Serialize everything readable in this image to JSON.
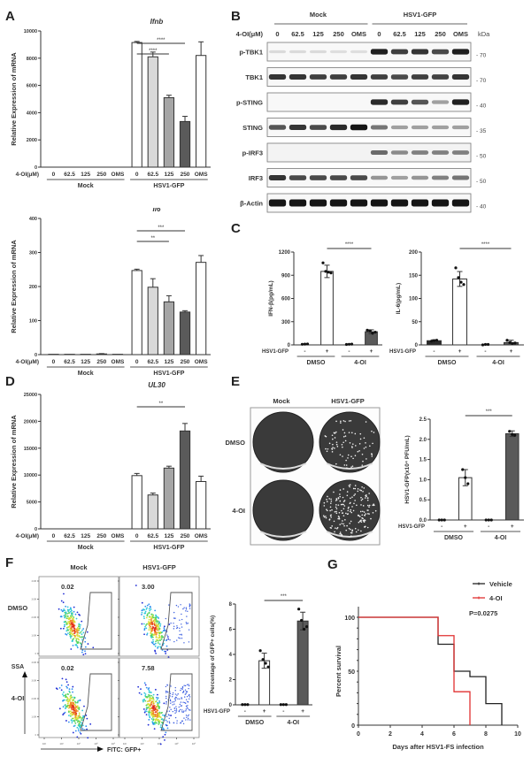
{
  "panel_labels": [
    "A",
    "B",
    "C",
    "D",
    "E",
    "F",
    "G"
  ],
  "chart_data": [
    {
      "id": "A_top",
      "type": "bar",
      "title": "Ifnb",
      "xlabel": "",
      "ylabel": "Relative Expression of mRNA",
      "ylim": [
        0,
        10000
      ],
      "yticks": [
        0,
        2000,
        4000,
        6000,
        8000,
        10000
      ],
      "row_label": "4-OI(μM)",
      "categories": [
        "0",
        "62.5",
        "125",
        "250",
        "OMS",
        "0",
        "62.5",
        "125",
        "250",
        "OMS"
      ],
      "groups": [
        {
          "label": "Mock",
          "from": 0,
          "to": 4
        },
        {
          "label": "HSV1-GFP",
          "from": 5,
          "to": 9
        }
      ],
      "values": [
        0,
        0,
        0,
        0,
        0,
        9150,
        8100,
        5100,
        3350,
        8200
      ],
      "errors": [
        0,
        0,
        0,
        0,
        0,
        80,
        350,
        180,
        380,
        1000
      ],
      "fills": [
        "#ffffff",
        "#d9d9d9",
        "#a6a6a6",
        "#5a5a5a",
        "#ffffff",
        "#ffffff",
        "#d9d9d9",
        "#a6a6a6",
        "#5a5a5a",
        "#ffffff"
      ],
      "significance": [
        {
          "from": 5,
          "to": 8,
          "label": "****"
        },
        {
          "from": 5,
          "to": 7,
          "label": "****"
        }
      ]
    },
    {
      "id": "A_bottom",
      "type": "bar",
      "title": "Il6",
      "xlabel": "",
      "ylabel": "Relative Expression of mRNA",
      "ylim": [
        0,
        400
      ],
      "yticks": [
        0,
        100,
        200,
        300,
        400
      ],
      "row_label": "4-OI(μM)",
      "categories": [
        "0",
        "62.5",
        "125",
        "250",
        "OMS",
        "0",
        "62.5",
        "125",
        "250",
        "OMS"
      ],
      "groups": [
        {
          "label": "Mock",
          "from": 0,
          "to": 4
        },
        {
          "label": "HSV1-GFP",
          "from": 5,
          "to": 9
        }
      ],
      "values": [
        1,
        1,
        1,
        2,
        1,
        247,
        198,
        155,
        125,
        271
      ],
      "errors": [
        0,
        0,
        0,
        1,
        0,
        4,
        25,
        18,
        4,
        20
      ],
      "fills": [
        "#ffffff",
        "#d9d9d9",
        "#a6a6a6",
        "#5a5a5a",
        "#ffffff",
        "#ffffff",
        "#d9d9d9",
        "#a6a6a6",
        "#5a5a5a",
        "#ffffff"
      ],
      "significance": [
        {
          "from": 5,
          "to": 8,
          "label": "***"
        },
        {
          "from": 5,
          "to": 7,
          "label": "**"
        }
      ]
    },
    {
      "id": "D",
      "type": "bar",
      "title": "UL30",
      "xlabel": "",
      "ylabel": "Relative Expression of mRNA",
      "ylim": [
        0,
        25000
      ],
      "yticks": [
        0,
        5000,
        10000,
        15000,
        20000,
        25000
      ],
      "row_label": "4-OI(μM)",
      "categories": [
        "0",
        "62.5",
        "125",
        "250",
        "OMS",
        "0",
        "62.5",
        "125",
        "250",
        "OMS"
      ],
      "groups": [
        {
          "label": "Mock",
          "from": 0,
          "to": 4
        },
        {
          "label": "HSV1-GFP",
          "from": 5,
          "to": 9
        }
      ],
      "values": [
        0,
        0,
        0,
        0,
        0,
        9900,
        6300,
        11300,
        18200,
        8800
      ],
      "errors": [
        0,
        0,
        0,
        0,
        0,
        400,
        350,
        350,
        1400,
        1000
      ],
      "fills": [
        "#ffffff",
        "#d9d9d9",
        "#a6a6a6",
        "#5a5a5a",
        "#ffffff",
        "#ffffff",
        "#d9d9d9",
        "#a6a6a6",
        "#5a5a5a",
        "#ffffff"
      ],
      "significance": [
        {
          "from": 5,
          "to": 8,
          "label": "**"
        }
      ]
    },
    {
      "id": "C_left",
      "type": "bar",
      "title": "",
      "ylabel": "IFN-β(pg/mL)",
      "ylim": [
        0,
        1200
      ],
      "yticks": [
        0,
        300,
        600,
        900,
        1200
      ],
      "row_label": "HSV1-GFP",
      "categories": [
        "-",
        "+",
        "-",
        "+"
      ],
      "groups": [
        {
          "label": "DMSO",
          "from": 0,
          "to": 1
        },
        {
          "label": "4-OI",
          "from": 2,
          "to": 3
        }
      ],
      "values": [
        10,
        950,
        8,
        170
      ],
      "errors": [
        3,
        80,
        3,
        25
      ],
      "points": [
        [
          8,
          10,
          12
        ],
        [
          1060,
          950,
          940,
          930
        ],
        [
          6,
          8,
          10
        ],
        [
          190,
          180,
          150,
          165
        ]
      ],
      "fills": [
        "#ffffff",
        "#ffffff",
        "#ffffff",
        "#5a5a5a"
      ],
      "significance": [
        {
          "from": 1,
          "to": 3,
          "label": "****"
        }
      ]
    },
    {
      "id": "C_right",
      "type": "bar",
      "title": "",
      "ylabel": "IL-6(pg/mL)",
      "ylim": [
        0,
        200
      ],
      "yticks": [
        0,
        50,
        100,
        150,
        200
      ],
      "row_label": "HSV1-GFP",
      "categories": [
        "-",
        "+",
        "-",
        "+"
      ],
      "groups": [
        {
          "label": "DMSO",
          "from": 0,
          "to": 1
        },
        {
          "label": "4-OI",
          "from": 2,
          "to": 3
        }
      ],
      "values": [
        9,
        142,
        1,
        5
      ],
      "errors": [
        2,
        16,
        1,
        5
      ],
      "points": [
        [
          8,
          9,
          10
        ],
        [
          166,
          145,
          135,
          130
        ],
        [
          0,
          1,
          1
        ],
        [
          10,
          5,
          3,
          4
        ]
      ],
      "fills": [
        "#2b2b2b",
        "#ffffff",
        "#ffffff",
        "#5a5a5a"
      ],
      "significance": [
        {
          "from": 1,
          "to": 3,
          "label": "****"
        }
      ]
    },
    {
      "id": "E_bar",
      "type": "bar",
      "title": "",
      "ylabel": "HSV1-GFP(x10⁴ PFU/mL)",
      "ylim": [
        0,
        2.5
      ],
      "yticks": [
        0.0,
        0.5,
        1.0,
        1.5,
        2.0,
        2.5
      ],
      "row_label": "HSV1-GFP",
      "categories": [
        "-",
        "+",
        "-",
        "+"
      ],
      "groups": [
        {
          "label": "DMSO",
          "from": 0,
          "to": 1
        },
        {
          "label": "4-OI",
          "from": 2,
          "to": 3
        }
      ],
      "values": [
        0,
        1.05,
        0,
        2.14
      ],
      "errors": [
        0,
        0.2,
        0,
        0.07
      ],
      "points": [
        [
          0,
          0,
          0
        ],
        [
          1.25,
          1.05,
          0.9
        ],
        [
          0,
          0,
          0
        ],
        [
          2.2,
          2.12,
          2.1
        ]
      ],
      "fills": [
        "#ffffff",
        "#ffffff",
        "#ffffff",
        "#5a5a5a"
      ],
      "significance": [
        {
          "from": 1,
          "to": 3,
          "label": "***"
        }
      ]
    },
    {
      "id": "F_bar",
      "type": "bar",
      "title": "",
      "ylabel": "Percentage of GFP+ cells(%)",
      "ylim": [
        0,
        8
      ],
      "yticks": [
        0,
        2,
        4,
        6,
        8
      ],
      "row_label": "HSV1-GFP",
      "categories": [
        "-",
        "+",
        "-",
        "+"
      ],
      "groups": [
        {
          "label": "DMSO",
          "from": 0,
          "to": 1
        },
        {
          "label": "4-OI",
          "from": 2,
          "to": 3
        }
      ],
      "values": [
        0.02,
        3.5,
        0.02,
        6.65
      ],
      "errors": [
        0,
        0.6,
        0,
        0.7
      ],
      "points": [
        [
          0.02,
          0.02,
          0.02
        ],
        [
          4.3,
          3.6,
          3.3,
          3.0
        ],
        [
          0.02,
          0.02,
          0.02
        ],
        [
          7.6,
          6.7,
          6.0,
          6.2
        ]
      ],
      "fills": [
        "#ffffff",
        "#ffffff",
        "#ffffff",
        "#5a5a5a"
      ],
      "significance": [
        {
          "from": 1,
          "to": 3,
          "label": "***"
        }
      ]
    },
    {
      "id": "G",
      "type": "line",
      "title": "",
      "xlabel": "Days after HSV1-FS infection",
      "ylabel": "Percent survival",
      "xlim": [
        0,
        10
      ],
      "ylim": [
        0,
        100
      ],
      "xticks": [
        0,
        2,
        4,
        6,
        8,
        10
      ],
      "yticks": [
        0,
        50,
        100
      ],
      "annotation": "P=0.0275",
      "legend_position": "top-right",
      "series": [
        {
          "name": "Vehicle",
          "color": "#222222",
          "step_x": [
            0,
            5,
            5,
            6,
            6,
            7,
            7,
            8,
            8,
            9,
            9
          ],
          "step_y": [
            100,
            100,
            75,
            75,
            50,
            50,
            45,
            45,
            20,
            20,
            0
          ]
        },
        {
          "name": "4-OI",
          "color": "#e03030",
          "step_x": [
            0,
            5,
            5,
            6,
            6,
            7,
            7
          ],
          "step_y": [
            100,
            100,
            83,
            83,
            31,
            31,
            0
          ]
        }
      ]
    }
  ],
  "western": {
    "groups": [
      "Mock",
      "HSV1-GFP"
    ],
    "row_label": "4-OI(μM)",
    "lanes": [
      "0",
      "62.5",
      "125",
      "250",
      "OMS",
      "0",
      "62.5",
      "125",
      "250",
      "OMS"
    ],
    "kda_label": "kDa",
    "blots": [
      {
        "name": "p-TBK1",
        "marker": "70",
        "intensity": [
          0.08,
          0.08,
          0.08,
          0.06,
          0.06,
          0.95,
          0.8,
          0.85,
          0.75,
          0.95
        ]
      },
      {
        "name": "TBK1",
        "marker": "70",
        "intensity": [
          0.85,
          0.85,
          0.8,
          0.8,
          0.85,
          0.8,
          0.75,
          0.8,
          0.78,
          0.85
        ]
      },
      {
        "name": "p-STING",
        "marker": "40",
        "intensity": [
          0,
          0,
          0,
          0,
          0,
          0.9,
          0.8,
          0.7,
          0.35,
          0.95
        ]
      },
      {
        "name": "STING",
        "marker": "35",
        "intensity": [
          0.7,
          0.85,
          0.75,
          0.9,
          1.0,
          0.55,
          0.35,
          0.35,
          0.35,
          0.35
        ]
      },
      {
        "name": "p-IRF3",
        "marker": "50",
        "intensity": [
          0,
          0,
          0,
          0,
          0,
          0.6,
          0.45,
          0.5,
          0.5,
          0.5
        ]
      },
      {
        "name": "IRF3",
        "marker": "50",
        "intensity": [
          0.85,
          0.75,
          0.75,
          0.75,
          0.75,
          0.4,
          0.35,
          0.4,
          0.5,
          0.55
        ]
      },
      {
        "name": "β-Actin",
        "marker": "40",
        "intensity": [
          1,
          1,
          1,
          1,
          1,
          1,
          1,
          1,
          1,
          1
        ]
      }
    ]
  },
  "plaque": {
    "columns": [
      "Mock",
      "HSV1-GFP"
    ],
    "rows": [
      "DMSO",
      "4-OI"
    ],
    "plaque_density": [
      [
        0,
        0.45
      ],
      [
        0,
        1.0
      ]
    ]
  },
  "flow": {
    "columns": [
      "Mock",
      "HSV1-GFP"
    ],
    "rows": [
      "DMSO",
      "4-OI"
    ],
    "values": [
      [
        "0.02",
        "3.00"
      ],
      [
        "0.02",
        "7.58"
      ]
    ],
    "y_axis_label": "SSA",
    "x_axis_label": "FITC: GFP+",
    "y_ticks": [
      "0",
      "1.0M",
      "2.0M",
      "3.0M",
      "4.0M"
    ],
    "x_ticks": [
      "10²",
      "10³",
      "10⁴",
      "10⁵",
      "10⁶"
    ]
  }
}
